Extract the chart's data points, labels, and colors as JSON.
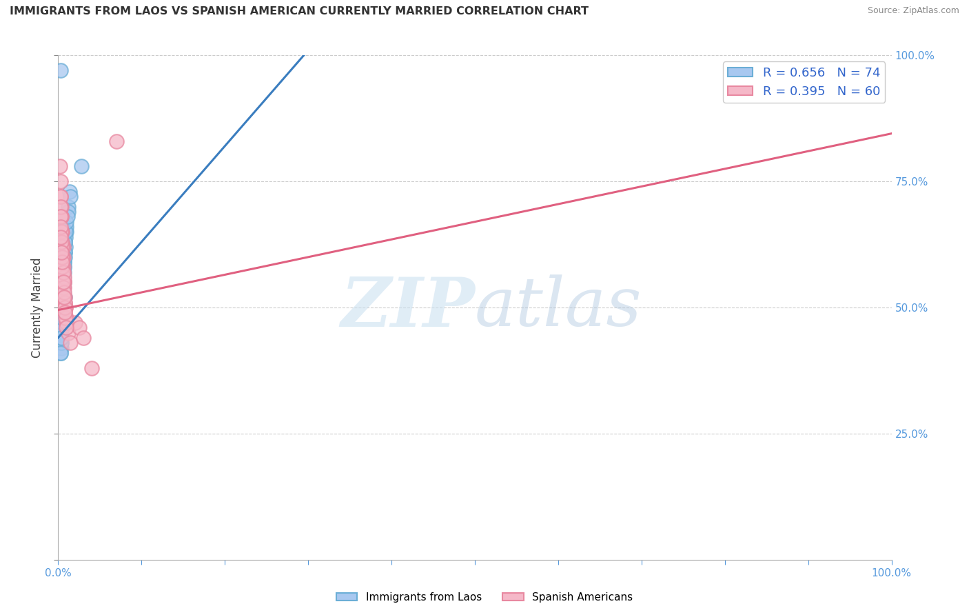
{
  "title": "IMMIGRANTS FROM LAOS VS SPANISH AMERICAN CURRENTLY MARRIED CORRELATION CHART",
  "source": "Source: ZipAtlas.com",
  "ylabel": "Currently Married",
  "xlim": [
    0,
    1.0
  ],
  "ylim": [
    0,
    1.0
  ],
  "xticklabels_ends": [
    "0.0%",
    "100.0%"
  ],
  "yticklabels_right": [
    "25.0%",
    "50.0%",
    "75.0%",
    "100.0%"
  ],
  "blue_line_color": "#3a7dbf",
  "pink_line_color": "#e06080",
  "watermark_zip": "ZIP",
  "watermark_atlas": "atlas",
  "grid_color": "#cccccc",
  "title_color": "#333333",
  "source_color": "#888888",
  "right_tick_color": "#5599dd",
  "blue_scatter_x": [
    0.003,
    0.005,
    0.006,
    0.007,
    0.008,
    0.004,
    0.003,
    0.005,
    0.006,
    0.007,
    0.004,
    0.005,
    0.006,
    0.004,
    0.005,
    0.007,
    0.004,
    0.003,
    0.006,
    0.008,
    0.005,
    0.004,
    0.003,
    0.005,
    0.01,
    0.007,
    0.012,
    0.005,
    0.004,
    0.003,
    0.005,
    0.007,
    0.009,
    0.006,
    0.004,
    0.005,
    0.014,
    0.008,
    0.006,
    0.005,
    0.004,
    0.006,
    0.028,
    0.003,
    0.004,
    0.005,
    0.006,
    0.007,
    0.009,
    0.004,
    0.005,
    0.006,
    0.007,
    0.008,
    0.01,
    0.012,
    0.015,
    0.004,
    0.005,
    0.006,
    0.007,
    0.008,
    0.009,
    0.01,
    0.011,
    0.005,
    0.006,
    0.004,
    0.003,
    0.007,
    0.008,
    0.006,
    0.005,
    0.004
  ],
  "blue_scatter_y": [
    0.97,
    0.48,
    0.55,
    0.5,
    0.52,
    0.53,
    0.47,
    0.49,
    0.56,
    0.51,
    0.48,
    0.6,
    0.62,
    0.45,
    0.46,
    0.58,
    0.44,
    0.43,
    0.57,
    0.63,
    0.54,
    0.42,
    0.41,
    0.5,
    0.65,
    0.59,
    0.7,
    0.5,
    0.48,
    0.46,
    0.52,
    0.6,
    0.64,
    0.55,
    0.47,
    0.49,
    0.73,
    0.61,
    0.56,
    0.51,
    0.46,
    0.53,
    0.78,
    0.44,
    0.46,
    0.48,
    0.53,
    0.57,
    0.62,
    0.43,
    0.47,
    0.54,
    0.58,
    0.61,
    0.66,
    0.69,
    0.72,
    0.44,
    0.49,
    0.54,
    0.59,
    0.63,
    0.65,
    0.67,
    0.68,
    0.46,
    0.5,
    0.43,
    0.41,
    0.55,
    0.6,
    0.52,
    0.48,
    0.44
  ],
  "pink_scatter_x": [
    0.002,
    0.003,
    0.004,
    0.005,
    0.006,
    0.004,
    0.003,
    0.005,
    0.006,
    0.007,
    0.004,
    0.005,
    0.006,
    0.003,
    0.004,
    0.008,
    0.009,
    0.007,
    0.01,
    0.012,
    0.015,
    0.005,
    0.004,
    0.003,
    0.006,
    0.007,
    0.008,
    0.02,
    0.025,
    0.03,
    0.005,
    0.004,
    0.006,
    0.008,
    0.01,
    0.003,
    0.004,
    0.005,
    0.007,
    0.009,
    0.04,
    0.005,
    0.004,
    0.006,
    0.008,
    0.07,
    0.003,
    0.005,
    0.007,
    0.009,
    0.004,
    0.006,
    0.008,
    0.01,
    0.005,
    0.007,
    0.003,
    0.004,
    0.006,
    0.008
  ],
  "pink_scatter_y": [
    0.78,
    0.72,
    0.68,
    0.65,
    0.62,
    0.7,
    0.75,
    0.6,
    0.58,
    0.55,
    0.65,
    0.63,
    0.6,
    0.72,
    0.68,
    0.52,
    0.5,
    0.55,
    0.48,
    0.45,
    0.43,
    0.6,
    0.62,
    0.7,
    0.57,
    0.54,
    0.51,
    0.47,
    0.46,
    0.44,
    0.55,
    0.58,
    0.52,
    0.49,
    0.47,
    0.68,
    0.65,
    0.62,
    0.56,
    0.5,
    0.38,
    0.58,
    0.61,
    0.54,
    0.51,
    0.83,
    0.66,
    0.6,
    0.53,
    0.48,
    0.63,
    0.57,
    0.5,
    0.46,
    0.59,
    0.52,
    0.64,
    0.61,
    0.55,
    0.49
  ],
  "blue_line_x": [
    0.0,
    0.3
  ],
  "blue_line_y": [
    0.44,
    1.01
  ],
  "pink_line_x": [
    0.0,
    1.0
  ],
  "pink_line_y": [
    0.495,
    0.845
  ],
  "legend1_label": "R = 0.656   N = 74",
  "legend2_label": "R = 0.395   N = 60",
  "legend_blue_face": "#a8c8f0",
  "legend_blue_edge": "#6baed6",
  "legend_pink_face": "#f5b8c8",
  "legend_pink_edge": "#e888a0",
  "bottom_legend1": "Immigrants from Laos",
  "bottom_legend2": "Spanish Americans"
}
